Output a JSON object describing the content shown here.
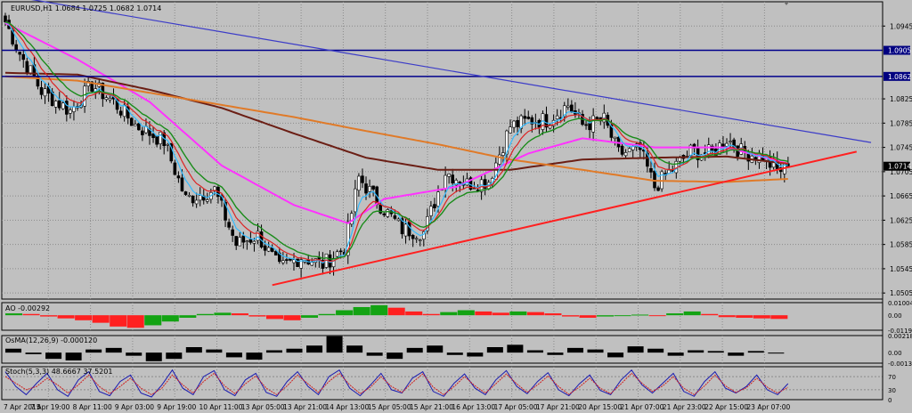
{
  "colors": {
    "background": "#c0c0c0",
    "grid": "#8a8a8a",
    "frame": "#000000",
    "bull_candle": "#ffffff",
    "bear_candle": "#000000",
    "trendline_blue": "#3c3cc8",
    "hline_navy": "#00008b",
    "support_red": "#ff2020",
    "ma_pink": "#ff33ff",
    "ma_brown": "#6b1e14",
    "ma_orange": "#e07a28",
    "ma_green": "#1a8c1a",
    "ma_skyblue": "#33bbff",
    "ma_red": "#dd2222",
    "ao_up": "#13a313",
    "ao_down": "#ff2020",
    "osma_bar": "#000000",
    "stoch_main": "#1a1ab0",
    "stoch_signal": "#d02020",
    "price_label_bg": "#000080",
    "price_label_text": "#ffffff",
    "current_label_bg": "#000000"
  },
  "chart_data": [
    {
      "type": "candlestick",
      "title": "EURUSD,H1  1.0684 1.0725 1.0682 1.0714",
      "ylim": [
        1.0495,
        1.0985
      ],
      "y_ticks": [
        "1.0945",
        "1.0905",
        "1.0862",
        "1.0825",
        "1.0785",
        "1.0745",
        "1.0714",
        "1.0705",
        "1.0665",
        "1.0625",
        "1.0585",
        "1.0545",
        "1.0505"
      ],
      "x_ticks": [
        "7 Apr 2015",
        "7 Apr 19:00",
        "8 Apr 11:00",
        "9 Apr 03:00",
        "9 Apr 19:00",
        "10 Apr 11:00",
        "13 Apr 05:00",
        "13 Apr 21:00",
        "14 Apr 13:00",
        "15 Apr 05:00",
        "15 Apr 21:00",
        "16 Apr 13:00",
        "17 Apr 05:00",
        "17 Apr 21:00",
        "20 Apr 15:00",
        "21 Apr 07:00",
        "21 Apr 23:00",
        "22 Apr 15:00",
        "23 Apr 07:00"
      ],
      "horizontal_lines": [
        {
          "price": 1.0905,
          "label": "1.0905"
        },
        {
          "price": 1.0862,
          "label": "1.0862"
        }
      ],
      "current_price_label": "1.0714",
      "trendlines": [
        {
          "color": "blue",
          "from": {
            "bar": 6,
            "price": 1.099
          },
          "to": {
            "bar": 240,
            "price": 1.0753
          }
        },
        {
          "color": "red",
          "from": {
            "bar": 74,
            "price": 1.0518
          },
          "to": {
            "bar": 236,
            "price": 1.0738
          }
        }
      ],
      "close_anchors": [
        [
          0,
          1.0952
        ],
        [
          4,
          1.09
        ],
        [
          10,
          1.0838
        ],
        [
          18,
          1.0805
        ],
        [
          24,
          1.0848
        ],
        [
          30,
          1.082
        ],
        [
          36,
          1.0782
        ],
        [
          44,
          1.0755
        ],
        [
          50,
          1.066
        ],
        [
          58,
          1.0675
        ],
        [
          64,
          1.0585
        ],
        [
          70,
          1.06
        ],
        [
          76,
          1.0545
        ],
        [
          82,
          1.0565
        ],
        [
          88,
          1.0552
        ],
        [
          94,
          1.058
        ],
        [
          98,
          1.0695
        ],
        [
          104,
          1.065
        ],
        [
          110,
          1.061
        ],
        [
          116,
          1.0605
        ],
        [
          122,
          1.0705
        ],
        [
          128,
          1.0685
        ],
        [
          134,
          1.069
        ],
        [
          140,
          1.078
        ],
        [
          146,
          1.079
        ],
        [
          150,
          1.079
        ],
        [
          156,
          1.0815
        ],
        [
          160,
          1.0782
        ],
        [
          166,
          1.079
        ],
        [
          170,
          1.0735
        ],
        [
          176,
          1.074
        ],
        [
          180,
          1.068
        ],
        [
          186,
          1.0715
        ],
        [
          190,
          1.0738
        ],
        [
          196,
          1.0735
        ],
        [
          200,
          1.076
        ],
        [
          204,
          1.0738
        ],
        [
          210,
          1.073
        ],
        [
          214,
          1.0705
        ],
        [
          217,
          1.0714
        ]
      ],
      "moving_averages": [
        {
          "color": "pink",
          "anchors": [
            [
              0,
              1.095
            ],
            [
              20,
              1.089
            ],
            [
              40,
              1.082
            ],
            [
              60,
              1.0715
            ],
            [
              80,
              1.065
            ],
            [
              95,
              1.062
            ],
            [
              105,
              1.066
            ],
            [
              125,
              1.068
            ],
            [
              145,
              1.0735
            ],
            [
              160,
              1.076
            ],
            [
              180,
              1.0745
            ],
            [
              200,
              1.0745
            ],
            [
              217,
              1.0718
            ]
          ]
        },
        {
          "color": "brown",
          "anchors": [
            [
              0,
              1.0868
            ],
            [
              20,
              1.0865
            ],
            [
              40,
              1.084
            ],
            [
              60,
              1.081
            ],
            [
              80,
              1.0768
            ],
            [
              100,
              1.0728
            ],
            [
              120,
              1.0708
            ],
            [
              140,
              1.0708
            ],
            [
              160,
              1.0725
            ],
            [
              180,
              1.0728
            ],
            [
              200,
              1.073
            ],
            [
              217,
              1.0718
            ]
          ]
        },
        {
          "color": "orange",
          "anchors": [
            [
              0,
              1.0862
            ],
            [
              20,
              1.0855
            ],
            [
              40,
              1.0835
            ],
            [
              60,
              1.0815
            ],
            [
              80,
              1.0795
            ],
            [
              100,
              1.0772
            ],
            [
              120,
              1.075
            ],
            [
              140,
              1.0725
            ],
            [
              160,
              1.0708
            ],
            [
              180,
              1.069
            ],
            [
              200,
              1.0688
            ],
            [
              217,
              1.0693
            ]
          ]
        }
      ]
    },
    {
      "type": "bar",
      "title": "AO -0.00292",
      "y_ticks": [
        "0.01004",
        "0.00",
        "-0.01193"
      ],
      "ylim": [
        -0.01193,
        0.01004
      ],
      "values": [
        0.0015,
        0.001,
        -0.001,
        -0.0025,
        -0.004,
        -0.006,
        -0.009,
        -0.01,
        -0.008,
        -0.005,
        -0.002,
        0.001,
        0.002,
        0.0015,
        -0.001,
        -0.003,
        -0.004,
        -0.002,
        0.001,
        0.004,
        0.0065,
        0.008,
        0.006,
        0.003,
        0.001,
        0.0025,
        0.004,
        0.003,
        0.002,
        0.003,
        0.0025,
        0.0015,
        -0.001,
        -0.002,
        -0.001,
        -0.0005,
        0.0005,
        -0.0005,
        0.0015,
        0.003,
        0.001,
        -0.0015,
        -0.002,
        -0.0025,
        -0.00292
      ]
    },
    {
      "type": "bar",
      "title": "OsMA(12,26,9) -0.000120",
      "y_ticks": [
        "0.00218",
        "0.00",
        "-0.00135"
      ],
      "ylim": [
        -0.00135,
        0.00218
      ],
      "values": [
        0.0005,
        -0.0002,
        -0.0008,
        -0.001,
        0.0004,
        0.0006,
        -0.0004,
        -0.0011,
        -0.0008,
        0.0007,
        0.0004,
        -0.0006,
        -0.0009,
        0.0003,
        0.0005,
        0.0009,
        0.0021,
        0.0009,
        -0.0004,
        -0.0008,
        0.0006,
        0.0009,
        -0.0003,
        -0.0005,
        0.0007,
        0.001,
        0.0003,
        -0.0003,
        0.0006,
        0.0004,
        -0.0006,
        0.0008,
        0.0005,
        -0.0004,
        0.0003,
        0.0002,
        -0.0004,
        0.0002,
        -0.00012
      ]
    },
    {
      "type": "line",
      "title": "Stoch(5,3,3) 48.6667 37.5201",
      "y_ticks": [
        "70",
        "30",
        "0"
      ],
      "ylim": [
        0,
        100
      ],
      "series": [
        {
          "values": [
            85,
            40,
            15,
            50,
            80,
            30,
            10,
            60,
            85,
            25,
            12,
            55,
            75,
            20,
            8,
            45,
            90,
            35,
            15,
            70,
            88,
            30,
            12,
            60,
            80,
            22,
            10,
            55,
            85,
            40,
            15,
            70,
            90,
            35,
            12,
            45,
            80,
            30,
            20,
            65,
            85,
            25,
            10,
            50,
            78,
            35,
            15,
            60,
            88,
            40,
            18,
            55,
            82,
            30,
            12,
            48,
            75,
            28,
            15,
            60,
            90,
            45,
            20,
            50,
            80,
            25,
            10,
            55,
            85,
            35,
            20,
            40,
            75,
            30,
            15,
            48.6667
          ]
        },
        {
          "values": [
            70,
            50,
            30,
            40,
            65,
            45,
            20,
            45,
            75,
            40,
            18,
            40,
            65,
            35,
            15,
            35,
            75,
            45,
            20,
            55,
            80,
            42,
            18,
            48,
            72,
            35,
            15,
            42,
            75,
            48,
            22,
            55,
            80,
            45,
            18,
            38,
            70,
            40,
            22,
            52,
            78,
            38,
            15,
            40,
            70,
            42,
            20,
            48,
            78,
            48,
            22,
            45,
            72,
            40,
            16,
            38,
            65,
            35,
            18,
            48,
            80,
            50,
            25,
            42,
            70,
            35,
            15,
            42,
            75,
            42,
            22,
            36,
            65,
            38,
            20,
            37.5201
          ]
        }
      ]
    }
  ]
}
